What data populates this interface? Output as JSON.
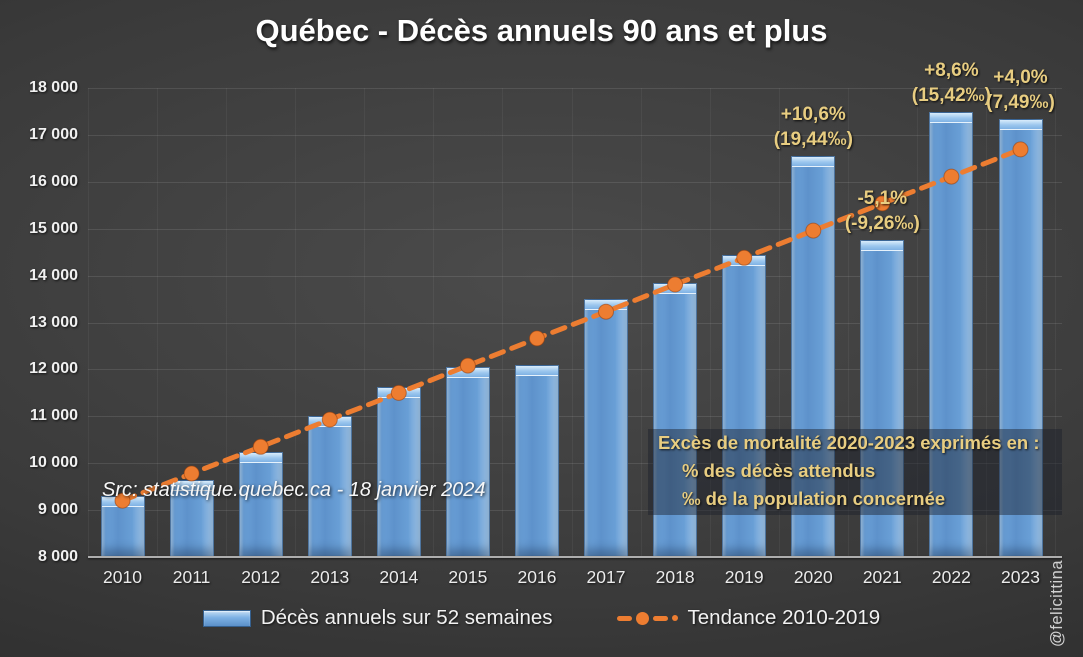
{
  "title": "Québec - Décès annuels 90 ans et plus",
  "source_note": "Src: statistique.quebec.ca - 18 janvier 2024",
  "watermark": "@felicittina",
  "legend": {
    "bars_label": "Décès annuels sur 52 semaines",
    "trend_label": "Tendance 2010-2019"
  },
  "excess_box": {
    "line1": "Excès de mortalité 2020-2023 exprimés en :",
    "line2": "% des décès attendus",
    "line3": "‰ de la population concernée"
  },
  "annotations": [
    {
      "year": "2020",
      "pct": "+10,6%",
      "permille": "(19,44‰)"
    },
    {
      "year": "2021",
      "pct": "-5,1%",
      "permille": "(-9,26‰)"
    },
    {
      "year": "2022",
      "pct": "+8,6%",
      "permille": "(15,42‰)"
    },
    {
      "year": "2023",
      "pct": "+4,0%",
      "permille": "(7,49‰)"
    }
  ],
  "colors": {
    "bar_blue": "#6FA6DE",
    "bar_highlight": "#AFD2F2",
    "trend_orange": "#ED7D31",
    "annotation_gold": "#E8CD81",
    "axis_text": "#F2F2F2",
    "background": "#3B3B3B"
  },
  "chart_data": {
    "type": "bar",
    "title": "Québec - Décès annuels 90 ans et plus",
    "categories": [
      "2010",
      "2011",
      "2012",
      "2013",
      "2014",
      "2015",
      "2016",
      "2017",
      "2018",
      "2019",
      "2020",
      "2021",
      "2022",
      "2023"
    ],
    "series": [
      {
        "name": "Décès annuels sur 52 semaines",
        "type": "bar",
        "values": [
          9300,
          9650,
          10250,
          11000,
          11620,
          12050,
          12100,
          13500,
          13850,
          14450,
          16550,
          14750,
          17500,
          17350
        ]
      },
      {
        "name": "Tendance 2010-2019",
        "type": "line",
        "style": "dashed-with-markers",
        "values": [
          9200,
          9780,
          10350,
          10930,
          11500,
          12080,
          12660,
          13230,
          13810,
          14380,
          14960,
          15540,
          16110,
          16690
        ]
      }
    ],
    "ylim": [
      8000,
      18000
    ],
    "y_tick_step": 1000,
    "y_tick_labels": [
      "8 000",
      "9 000",
      "10 000",
      "11 000",
      "12 000",
      "13 000",
      "14 000",
      "15 000",
      "16 000",
      "17 000",
      "18 000"
    ],
    "grid": "horizontal",
    "legend_position": "bottom"
  }
}
